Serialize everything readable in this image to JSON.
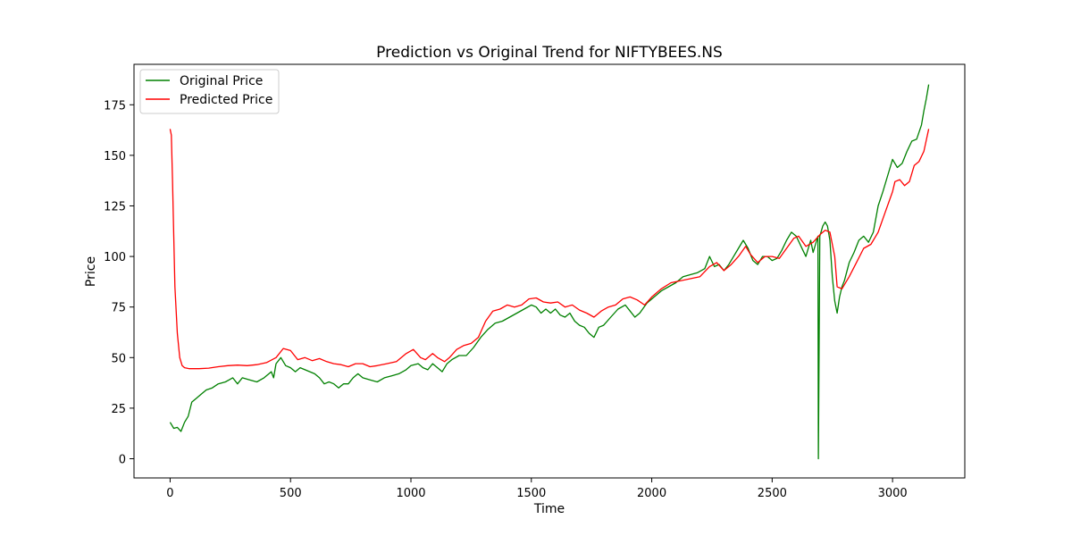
{
  "chart_data": {
    "type": "line",
    "title": "Prediction vs Original Trend for NIFTYBEES.NS",
    "xlabel": "Time",
    "ylabel": "Price",
    "xlim": [
      -150,
      3300
    ],
    "ylim": [
      -9.5,
      195
    ],
    "xticks": [
      0,
      500,
      1000,
      1500,
      2000,
      2500,
      3000
    ],
    "yticks": [
      0,
      25,
      50,
      75,
      100,
      125,
      150,
      175
    ],
    "grid": false,
    "legend_position": "upper-left",
    "series": [
      {
        "name": "Original Price",
        "color": "#008000",
        "points": [
          [
            0,
            18
          ],
          [
            15,
            15
          ],
          [
            30,
            15.5
          ],
          [
            45,
            13.5
          ],
          [
            60,
            18
          ],
          [
            75,
            21
          ],
          [
            90,
            28
          ],
          [
            110,
            30
          ],
          [
            130,
            32
          ],
          [
            150,
            34
          ],
          [
            175,
            35
          ],
          [
            200,
            37
          ],
          [
            230,
            38
          ],
          [
            260,
            40
          ],
          [
            280,
            37
          ],
          [
            300,
            40
          ],
          [
            330,
            39
          ],
          [
            360,
            38
          ],
          [
            390,
            40
          ],
          [
            420,
            43
          ],
          [
            430,
            40
          ],
          [
            440,
            47
          ],
          [
            460,
            50
          ],
          [
            480,
            46
          ],
          [
            500,
            45
          ],
          [
            520,
            43
          ],
          [
            540,
            45
          ],
          [
            560,
            44
          ],
          [
            580,
            43
          ],
          [
            600,
            42
          ],
          [
            620,
            40
          ],
          [
            640,
            37
          ],
          [
            660,
            38
          ],
          [
            680,
            37
          ],
          [
            700,
            35
          ],
          [
            720,
            37
          ],
          [
            740,
            37
          ],
          [
            760,
            40
          ],
          [
            780,
            42
          ],
          [
            800,
            40
          ],
          [
            830,
            39
          ],
          [
            860,
            38
          ],
          [
            890,
            40
          ],
          [
            920,
            41
          ],
          [
            950,
            42
          ],
          [
            980,
            44
          ],
          [
            1000,
            46
          ],
          [
            1030,
            47
          ],
          [
            1050,
            45
          ],
          [
            1070,
            44
          ],
          [
            1090,
            47
          ],
          [
            1110,
            45
          ],
          [
            1130,
            43
          ],
          [
            1150,
            47
          ],
          [
            1170,
            49
          ],
          [
            1200,
            51
          ],
          [
            1230,
            51
          ],
          [
            1260,
            55
          ],
          [
            1290,
            60
          ],
          [
            1320,
            64
          ],
          [
            1350,
            67
          ],
          [
            1380,
            68
          ],
          [
            1410,
            70
          ],
          [
            1440,
            72
          ],
          [
            1470,
            74
          ],
          [
            1500,
            76
          ],
          [
            1520,
            75
          ],
          [
            1540,
            72
          ],
          [
            1560,
            74
          ],
          [
            1580,
            72
          ],
          [
            1600,
            74
          ],
          [
            1620,
            71
          ],
          [
            1640,
            70
          ],
          [
            1660,
            72
          ],
          [
            1680,
            68
          ],
          [
            1700,
            66
          ],
          [
            1720,
            65
          ],
          [
            1740,
            62
          ],
          [
            1760,
            60
          ],
          [
            1780,
            65
          ],
          [
            1800,
            66
          ],
          [
            1830,
            70
          ],
          [
            1860,
            74
          ],
          [
            1890,
            76
          ],
          [
            1910,
            73
          ],
          [
            1930,
            70
          ],
          [
            1950,
            72
          ],
          [
            1980,
            77
          ],
          [
            2010,
            80
          ],
          [
            2040,
            83
          ],
          [
            2070,
            85
          ],
          [
            2100,
            87
          ],
          [
            2130,
            90
          ],
          [
            2160,
            91
          ],
          [
            2190,
            92
          ],
          [
            2220,
            94
          ],
          [
            2240,
            100
          ],
          [
            2260,
            95
          ],
          [
            2280,
            96
          ],
          [
            2300,
            93
          ],
          [
            2320,
            96
          ],
          [
            2340,
            100
          ],
          [
            2360,
            104
          ],
          [
            2380,
            108
          ],
          [
            2400,
            104
          ],
          [
            2420,
            98
          ],
          [
            2440,
            96
          ],
          [
            2460,
            100
          ],
          [
            2480,
            100
          ],
          [
            2500,
            98
          ],
          [
            2520,
            99
          ],
          [
            2540,
            103
          ],
          [
            2560,
            108
          ],
          [
            2580,
            112
          ],
          [
            2600,
            110
          ],
          [
            2620,
            105
          ],
          [
            2640,
            100
          ],
          [
            2660,
            108
          ],
          [
            2670,
            102
          ],
          [
            2680,
            106
          ],
          [
            2690,
            110
          ],
          [
            2692,
            0
          ],
          [
            2698,
            110
          ],
          [
            2710,
            115
          ],
          [
            2720,
            117
          ],
          [
            2730,
            115
          ],
          [
            2740,
            108
          ],
          [
            2750,
            90
          ],
          [
            2760,
            78
          ],
          [
            2770,
            72
          ],
          [
            2780,
            80
          ],
          [
            2790,
            85
          ],
          [
            2800,
            88
          ],
          [
            2820,
            97
          ],
          [
            2840,
            102
          ],
          [
            2860,
            108
          ],
          [
            2880,
            110
          ],
          [
            2900,
            107
          ],
          [
            2920,
            112
          ],
          [
            2940,
            125
          ],
          [
            2960,
            132
          ],
          [
            2980,
            140
          ],
          [
            3000,
            148
          ],
          [
            3020,
            144
          ],
          [
            3040,
            146
          ],
          [
            3060,
            152
          ],
          [
            3080,
            157
          ],
          [
            3100,
            158
          ],
          [
            3120,
            165
          ],
          [
            3130,
            172
          ],
          [
            3140,
            178
          ],
          [
            3150,
            185
          ]
        ]
      },
      {
        "name": "Predicted Price",
        "color": "#ff0000",
        "points": [
          [
            0,
            163
          ],
          [
            5,
            160
          ],
          [
            10,
            138
          ],
          [
            15,
            110
          ],
          [
            20,
            85
          ],
          [
            30,
            62
          ],
          [
            40,
            50
          ],
          [
            50,
            46
          ],
          [
            60,
            45
          ],
          [
            80,
            44.5
          ],
          [
            120,
            44.5
          ],
          [
            160,
            44.8
          ],
          [
            200,
            45.5
          ],
          [
            240,
            46
          ],
          [
            280,
            46.3
          ],
          [
            320,
            46
          ],
          [
            360,
            46.5
          ],
          [
            400,
            47.5
          ],
          [
            440,
            50
          ],
          [
            470,
            54.5
          ],
          [
            500,
            53.5
          ],
          [
            530,
            49
          ],
          [
            560,
            50
          ],
          [
            590,
            48.5
          ],
          [
            620,
            49.5
          ],
          [
            650,
            48
          ],
          [
            680,
            47
          ],
          [
            710,
            46.5
          ],
          [
            740,
            45.5
          ],
          [
            770,
            47
          ],
          [
            800,
            47
          ],
          [
            830,
            45.5
          ],
          [
            860,
            46
          ],
          [
            900,
            47
          ],
          [
            940,
            48
          ],
          [
            980,
            52
          ],
          [
            1010,
            54
          ],
          [
            1040,
            50
          ],
          [
            1060,
            49
          ],
          [
            1090,
            52
          ],
          [
            1110,
            50
          ],
          [
            1140,
            48
          ],
          [
            1160,
            50
          ],
          [
            1190,
            54
          ],
          [
            1220,
            56
          ],
          [
            1250,
            57
          ],
          [
            1280,
            60
          ],
          [
            1310,
            68
          ],
          [
            1340,
            73
          ],
          [
            1370,
            74
          ],
          [
            1400,
            76
          ],
          [
            1430,
            75
          ],
          [
            1460,
            76
          ],
          [
            1490,
            79
          ],
          [
            1520,
            79.5
          ],
          [
            1550,
            77.5
          ],
          [
            1580,
            77
          ],
          [
            1610,
            77.5
          ],
          [
            1640,
            75
          ],
          [
            1670,
            76
          ],
          [
            1700,
            73.5
          ],
          [
            1730,
            72
          ],
          [
            1760,
            70
          ],
          [
            1790,
            73
          ],
          [
            1820,
            75
          ],
          [
            1850,
            76
          ],
          [
            1880,
            79
          ],
          [
            1910,
            80
          ],
          [
            1940,
            78.5
          ],
          [
            1970,
            76
          ],
          [
            2000,
            80
          ],
          [
            2040,
            84
          ],
          [
            2080,
            87
          ],
          [
            2120,
            88
          ],
          [
            2160,
            89
          ],
          [
            2200,
            90
          ],
          [
            2240,
            95
          ],
          [
            2270,
            97
          ],
          [
            2300,
            93
          ],
          [
            2330,
            96
          ],
          [
            2360,
            100
          ],
          [
            2390,
            105
          ],
          [
            2410,
            101
          ],
          [
            2440,
            97
          ],
          [
            2470,
            100
          ],
          [
            2500,
            100
          ],
          [
            2530,
            99
          ],
          [
            2560,
            104
          ],
          [
            2590,
            109
          ],
          [
            2610,
            110
          ],
          [
            2640,
            105
          ],
          [
            2670,
            107
          ],
          [
            2700,
            111
          ],
          [
            2720,
            113
          ],
          [
            2740,
            112
          ],
          [
            2760,
            100
          ],
          [
            2770,
            85
          ],
          [
            2790,
            84
          ],
          [
            2820,
            90
          ],
          [
            2850,
            97
          ],
          [
            2880,
            104
          ],
          [
            2910,
            106
          ],
          [
            2940,
            112
          ],
          [
            2970,
            122
          ],
          [
            3000,
            132
          ],
          [
            3010,
            137
          ],
          [
            3030,
            138
          ],
          [
            3050,
            135
          ],
          [
            3070,
            137
          ],
          [
            3090,
            145
          ],
          [
            3110,
            147
          ],
          [
            3130,
            152
          ],
          [
            3150,
            163
          ]
        ]
      }
    ]
  }
}
